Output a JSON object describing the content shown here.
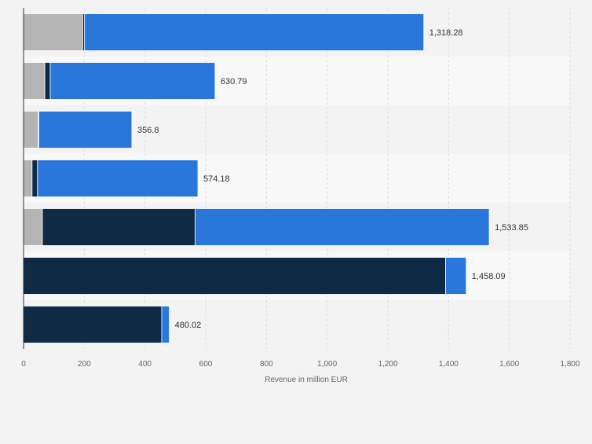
{
  "chart_data": {
    "type": "bar",
    "orientation": "horizontal",
    "stacked": true,
    "categories": [
      "",
      "",
      "",
      "",
      "",
      "",
      ""
    ],
    "series": [
      {
        "values": [
          195,
          70,
          48,
          28,
          62,
          0,
          0
        ]
      },
      {
        "values": [
          6,
          18,
          2,
          18,
          503,
          1390,
          455
        ]
      },
      {
        "values": [
          1117.28,
          542.79,
          306.8,
          528.18,
          968.85,
          68.09,
          25.02
        ]
      }
    ],
    "totals": [
      "1,318.28",
      "630.79",
      "356.8",
      "574.18",
      "1,533.85",
      "1,458.09",
      "480.02"
    ],
    "xlabel": "Revenue in million EUR",
    "xlim": [
      0,
      1800
    ],
    "xticks": [
      "0",
      "200",
      "400",
      "600",
      "800",
      "1,000",
      "1,200",
      "1,400",
      "1,600",
      "1,800"
    ],
    "grid": true,
    "legend": "none",
    "colors": {
      "series": [
        "#b4b4b4",
        "#0f2a45",
        "#2a77dc"
      ],
      "background": "#f3f3f3",
      "band_light": "#f8f8f8",
      "band_dark": "#f3f3f3",
      "grid": "#dcdcdc",
      "axis": "#333333",
      "text": "#333333",
      "tick_text": "#666666"
    }
  }
}
